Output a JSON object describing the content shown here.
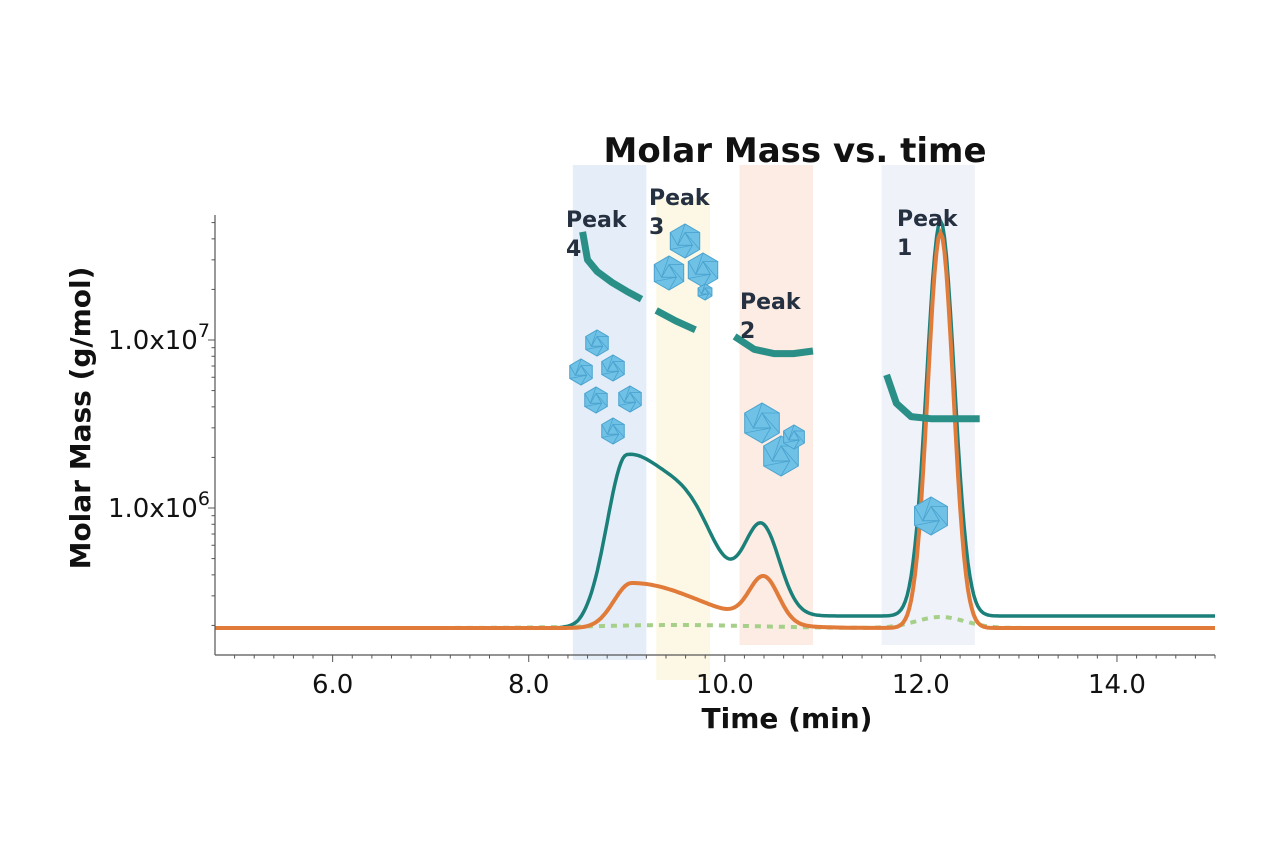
{
  "chart_data": {
    "type": "line",
    "title": "Molar Mass vs. time",
    "xlabel": "Time (min)",
    "ylabel": "Molar Mass (g/mol)",
    "xlim": [
      4.8,
      15.0
    ],
    "x_ticks": [
      "6.0",
      "8.0",
      "10.0",
      "12.0",
      "14.0"
    ],
    "y_ticks": [
      {
        "base": "1.0x10",
        "exp": "6"
      },
      {
        "base": "1.0x10",
        "exp": "7"
      }
    ],
    "y_scale": "log",
    "peaks": [
      {
        "label": [
          "Peak",
          "4"
        ],
        "range": [
          8.45,
          9.2
        ],
        "color": "#dce8f5"
      },
      {
        "label": [
          "Peak",
          "3"
        ],
        "range": [
          9.3,
          9.85
        ],
        "color": "#fcf6dc"
      },
      {
        "label": [
          "Peak",
          "2"
        ],
        "range": [
          10.15,
          10.9
        ],
        "color": "#fbe5da"
      },
      {
        "label": [
          "Peak",
          "1"
        ],
        "range": [
          11.6,
          12.55
        ],
        "color": "#e9eef6"
      }
    ],
    "molar_mass_segments": [
      {
        "x": [
          8.55,
          8.6,
          8.7,
          8.85,
          9.0,
          9.15
        ],
        "y": [
          44000000.0,
          30000000.0,
          25500000.0,
          22000000.0,
          19500000.0,
          17500000.0
        ]
      },
      {
        "x": [
          9.3,
          9.5,
          9.7
        ],
        "y": [
          15000000.0,
          13000000.0,
          11500000.0
        ]
      },
      {
        "x": [
          10.1,
          10.3,
          10.5,
          10.7,
          10.9
        ],
        "y": [
          10500000.0,
          8800000.0,
          8300000.0,
          8300000.0,
          8600000.0
        ]
      },
      {
        "x": [
          11.65,
          11.75,
          11.9,
          12.1,
          12.3,
          12.5,
          12.6
        ],
        "y": [
          6200000.0,
          4200000.0,
          3500000.0,
          3400000.0,
          3400000.0,
          3400000.0,
          3400000.0
        ]
      }
    ],
    "series_colors": {
      "teal": "#1b7f7a",
      "orange": "#e07b39",
      "green": "#a6cf8a"
    }
  }
}
